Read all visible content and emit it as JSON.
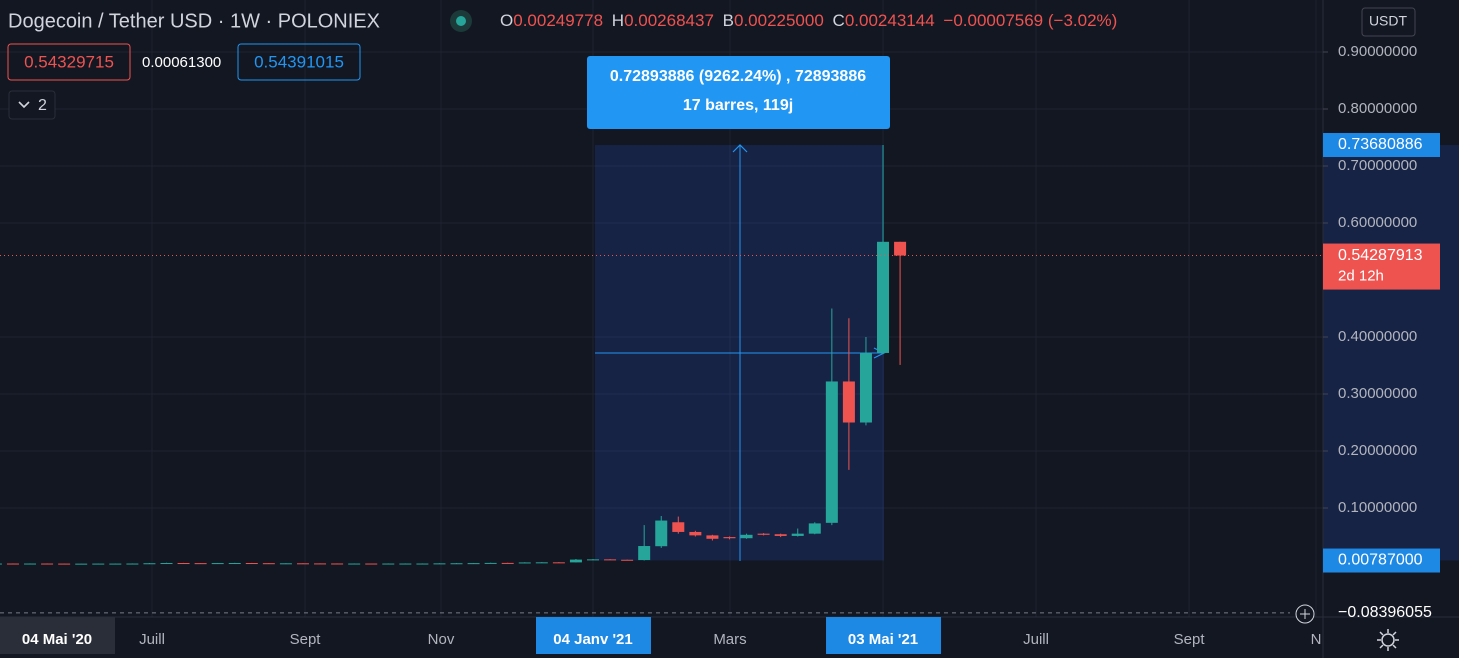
{
  "header": {
    "title": "Dogecoin / Tether USD · 1W · POLONIEX",
    "ohlc": [
      {
        "label": "O",
        "value": "0.00249778"
      },
      {
        "label": "H",
        "value": "0.00268437"
      },
      {
        "label": "B",
        "value": "0.00225000"
      },
      {
        "label": "C",
        "value": "0.00243144"
      }
    ],
    "change": "−0.00007569 (−3.02%)"
  },
  "trade": {
    "sell": "0.54329715",
    "spread": "0.00061300",
    "buy": "0.54391015"
  },
  "indicators_toggle": "2",
  "currency": "USDT",
  "measure": {
    "line1": "0.72893886 (9262.24%) , 72893886",
    "line2": "17 barres, 119j"
  },
  "chart": {
    "type": "candlestick",
    "up_color": "#26a69a",
    "down_color": "#ef5350",
    "ylim": [
      -0.0912,
      0.9912
    ],
    "yticks": [
      {
        "value": 0.9,
        "label": "0.90000000"
      },
      {
        "value": 0.8,
        "label": "0.80000000"
      },
      {
        "value": 0.7,
        "label": "0.70000000"
      },
      {
        "value": 0.6,
        "label": "0.60000000"
      },
      {
        "value": 0.4,
        "label": "0.40000000"
      },
      {
        "value": 0.3,
        "label": "0.30000000"
      },
      {
        "value": 0.2,
        "label": "0.20000000"
      },
      {
        "value": 0.1,
        "label": "0.10000000"
      }
    ],
    "xticks": [
      {
        "value": 0,
        "label": "04 Mai '20",
        "highlight": "#2a2e39"
      },
      {
        "value": 9.15,
        "label": "Juill"
      },
      {
        "value": 18.12,
        "label": "Sept"
      },
      {
        "value": 26.09,
        "label": "Nov"
      },
      {
        "value": 35,
        "label": "04 Janv '21",
        "highlight": "#1e88e5"
      },
      {
        "value": 43.03,
        "label": "Mars"
      },
      {
        "value": 52,
        "label": "03 Mai '21",
        "highlight": "#1e88e5"
      },
      {
        "value": 60.97,
        "label": "Juill"
      },
      {
        "value": 69.94,
        "label": "Sept"
      },
      {
        "value": 77.38,
        "label": "N"
      }
    ],
    "price_labels": [
      {
        "value": 0.73680886,
        "label": "0.73680886",
        "color": "#1e88e5"
      },
      {
        "value": 0.54287913,
        "label": "0.54287913",
        "sub": "2d 12h",
        "color": "#ef5350"
      },
      {
        "value": 0.00787,
        "label": "0.00787000",
        "color": "#1e88e5"
      },
      {
        "value": -0.08396055,
        "label": "−0.08396055"
      }
    ],
    "open": [
      0.0026,
      0.0026,
      0.0025,
      0.0026,
      0.0025,
      0.0024,
      0.0024,
      0.0025,
      0.0025,
      0.0026,
      0.0031,
      0.0035,
      0.0033,
      0.0032,
      0.0034,
      0.0035,
      0.0032,
      0.003,
      0.003,
      0.0028,
      0.0027,
      0.0026,
      0.0026,
      0.0025,
      0.0026,
      0.0026,
      0.0026,
      0.0029,
      0.0031,
      0.0033,
      0.0037,
      0.0034,
      0.0045,
      0.0047,
      0.0046,
      0.0095,
      0.0099,
      0.0092,
      0.0087,
      0.033,
      0.075,
      0.058,
      0.052,
      0.049,
      0.047,
      0.055,
      0.054,
      0.051,
      0.055,
      0.074,
      0.322,
      0.25,
      0.372,
      0.567
    ],
    "high": [
      0.0029,
      0.0028,
      0.0028,
      0.0028,
      0.0027,
      0.0026,
      0.0027,
      0.0027,
      0.0028,
      0.0034,
      0.0039,
      0.0037,
      0.0035,
      0.0036,
      0.0038,
      0.0037,
      0.0033,
      0.0032,
      0.0031,
      0.0029,
      0.0028,
      0.0028,
      0.0027,
      0.0028,
      0.0028,
      0.0028,
      0.0031,
      0.0033,
      0.0036,
      0.004,
      0.0039,
      0.0048,
      0.005,
      0.005,
      0.0105,
      0.0106,
      0.0103,
      0.0095,
      0.07,
      0.086,
      0.085,
      0.06,
      0.053,
      0.05,
      0.055,
      0.056,
      0.055,
      0.064,
      0.075,
      0.45,
      0.433,
      0.4,
      0.7368,
      0.567
    ],
    "low": [
      0.0024,
      0.0023,
      0.0023,
      0.0023,
      0.0022,
      0.0022,
      0.0022,
      0.0023,
      0.0024,
      0.0025,
      0.003,
      0.0031,
      0.003,
      0.003,
      0.0032,
      0.003,
      0.0028,
      0.0028,
      0.0026,
      0.0025,
      0.0024,
      0.0024,
      0.0023,
      0.0023,
      0.0024,
      0.0024,
      0.0024,
      0.0027,
      0.0029,
      0.0031,
      0.0032,
      0.0033,
      0.0043,
      0.0043,
      0.0045,
      0.0085,
      0.0088,
      0.008,
      0.008,
      0.03,
      0.055,
      0.05,
      0.043,
      0.045,
      0.046,
      0.052,
      0.049,
      0.05,
      0.054,
      0.07,
      0.167,
      0.245,
      0.37,
      0.351
    ],
    "close": [
      0.0026,
      0.0025,
      0.0026,
      0.0025,
      0.0024,
      0.0024,
      0.0025,
      0.0025,
      0.0026,
      0.0031,
      0.0035,
      0.0033,
      0.0032,
      0.0034,
      0.0035,
      0.0032,
      0.003,
      0.003,
      0.0028,
      0.0027,
      0.0026,
      0.0026,
      0.0025,
      0.0026,
      0.0026,
      0.0026,
      0.0029,
      0.0031,
      0.0033,
      0.0037,
      0.0034,
      0.0045,
      0.0047,
      0.0046,
      0.0095,
      0.0099,
      0.0092,
      0.0087,
      0.0333,
      0.078,
      0.058,
      0.052,
      0.046,
      0.047,
      0.053,
      0.053,
      0.051,
      0.055,
      0.073,
      0.322,
      0.25,
      0.372,
      0.567,
      0.5429
    ]
  }
}
